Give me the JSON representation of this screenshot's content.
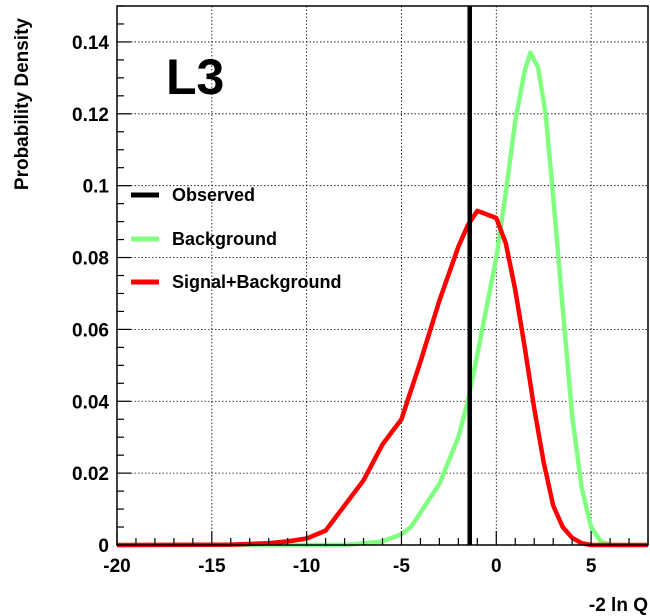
{
  "chart_data": {
    "type": "line",
    "experiment_label": "L3",
    "xlabel": "-2 ln Q",
    "ylabel": "Probability Density",
    "xlim": [
      -20,
      8
    ],
    "ylim": [
      0,
      0.15
    ],
    "grid": true,
    "legend_position": "middle-left",
    "x_ticks": [
      -20,
      -15,
      -10,
      -5,
      0,
      5
    ],
    "x_tick_labels": [
      "-20",
      "-15",
      "-10",
      "-5",
      "0",
      "5"
    ],
    "y_ticks": [
      0,
      0.02,
      0.04,
      0.06,
      0.08,
      0.1,
      0.12,
      0.14
    ],
    "y_tick_labels": [
      "0",
      "0.02",
      "0.04",
      "0.06",
      "0.08",
      "0.1",
      "0.12",
      "0.14"
    ],
    "observed": {
      "name": "Observed",
      "x": -1.4,
      "color": "#000000"
    },
    "series": [
      {
        "name": "Background",
        "color": "#80ff80",
        "x": [
          -20,
          -10,
          -8,
          -7,
          -6,
          -5,
          -4.5,
          -4,
          -3,
          -2,
          -1.5,
          -1,
          0,
          0.5,
          1,
          1.5,
          1.8,
          2.2,
          2.6,
          3,
          3.5,
          4,
          4.5,
          5,
          5.5,
          6,
          8
        ],
        "y": [
          0,
          0,
          0,
          0.0005,
          0.001,
          0.003,
          0.005,
          0.009,
          0.017,
          0.03,
          0.04,
          0.053,
          0.08,
          0.098,
          0.118,
          0.132,
          0.137,
          0.133,
          0.12,
          0.097,
          0.066,
          0.036,
          0.016,
          0.005,
          0.001,
          0,
          0
        ]
      },
      {
        "name": "Signal+Background",
        "color": "#ff0000",
        "x": [
          -20,
          -14,
          -12,
          -11,
          -10,
          -9,
          -8,
          -7,
          -6,
          -5,
          -4,
          -3,
          -2,
          -1.5,
          -1,
          -0.5,
          0,
          0.5,
          1,
          1.5,
          2,
          2.5,
          3,
          3.5,
          4,
          4.5,
          5,
          6,
          8
        ],
        "y": [
          0,
          0.0001,
          0.0005,
          0.001,
          0.0018,
          0.004,
          0.011,
          0.018,
          0.028,
          0.035,
          0.051,
          0.068,
          0.083,
          0.089,
          0.093,
          0.092,
          0.091,
          0.084,
          0.071,
          0.055,
          0.038,
          0.023,
          0.011,
          0.005,
          0.002,
          0.0005,
          0,
          0,
          0
        ]
      }
    ]
  }
}
